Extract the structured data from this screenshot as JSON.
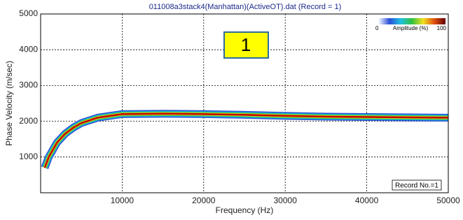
{
  "chart_data": {
    "type": "line",
    "title": "011008a3stack4(Manhattan)(ActiveOT).dat (Record = 1)",
    "x_label": "Frequency (Hz)",
    "y_label": "Phase Velocity (m/sec)",
    "x": [
      500,
      1000,
      2000,
      3000,
      4000,
      5000,
      7000,
      10000,
      15000,
      20000,
      25000,
      30000,
      35000,
      40000,
      45000,
      50000
    ],
    "series": [
      {
        "color": "#c00000",
        "values": [
          700,
          1000,
          1400,
          1650,
          1820,
          1950,
          2100,
          2200,
          2210,
          2200,
          2180,
          2150,
          2130,
          2120,
          2110,
          2100
        ]
      }
    ],
    "xlim": [
      0,
      50000
    ],
    "xticks": [
      10000,
      20000,
      30000,
      40000,
      50000
    ],
    "ylim": [
      0,
      5000
    ],
    "yticks": [
      1000,
      2000,
      3000,
      4000,
      5000
    ],
    "grid": true,
    "colorbar": {
      "label": "Amplitude (%)",
      "ticks": [
        0,
        100
      ],
      "colors": [
        "#ffffff",
        "#2a4fd6",
        "#20c0e0",
        "#30c040",
        "#f0e020",
        "#e05010",
        "#600000"
      ]
    },
    "annotations": {
      "box_label": "1",
      "record": "Record No.=1"
    }
  }
}
